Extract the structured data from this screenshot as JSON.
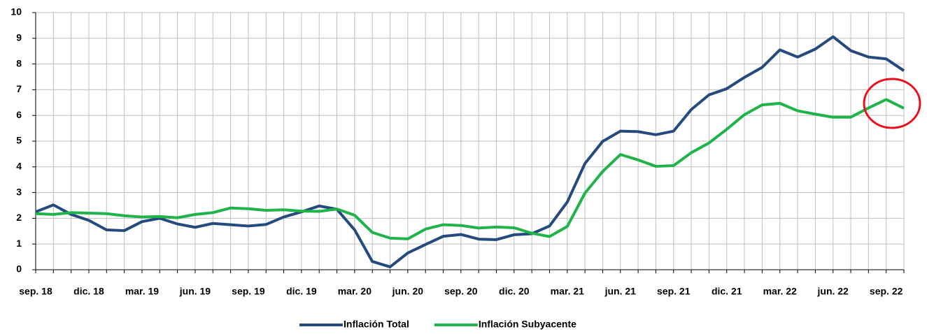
{
  "chart_data": {
    "type": "line",
    "categories": [
      "sep. 18",
      null,
      null,
      "dic. 18",
      null,
      null,
      "mar. 19",
      null,
      null,
      "jun. 19",
      null,
      null,
      "sep. 19",
      null,
      null,
      "dic. 19",
      null,
      null,
      "mar. 20",
      null,
      null,
      "jun. 20",
      null,
      null,
      "sep. 20",
      null,
      null,
      "dic. 20",
      null,
      null,
      "mar. 21",
      null,
      null,
      "jun. 21",
      null,
      null,
      "sep. 21",
      null,
      null,
      "dic. 21",
      null,
      null,
      "mar. 22",
      null,
      null,
      "jun. 22",
      null,
      null,
      "sep. 22",
      null
    ],
    "series": [
      {
        "name": "Inflación Total",
        "color": "#254b7e",
        "values": [
          2.25,
          2.52,
          2.15,
          1.92,
          1.55,
          1.52,
          1.87,
          2.0,
          1.78,
          1.65,
          1.8,
          1.75,
          1.7,
          1.76,
          2.05,
          2.25,
          2.48,
          2.35,
          1.55,
          0.32,
          0.11,
          0.65,
          0.98,
          1.3,
          1.37,
          1.19,
          1.17,
          1.36,
          1.4,
          1.7,
          2.63,
          4.13,
          4.99,
          5.39,
          5.37,
          5.25,
          5.39,
          6.23,
          6.8,
          7.04,
          7.48,
          7.87,
          8.55,
          8.27,
          8.58,
          9.06,
          8.52,
          8.27,
          8.2,
          7.74
        ]
      },
      {
        "name": "Inflación Subyacente",
        "color": "#1fb34a",
        "values": [
          2.18,
          2.15,
          2.22,
          2.2,
          2.18,
          2.1,
          2.05,
          2.07,
          2.02,
          2.15,
          2.22,
          2.4,
          2.37,
          2.31,
          2.33,
          2.28,
          2.27,
          2.36,
          2.12,
          1.45,
          1.23,
          1.2,
          1.58,
          1.75,
          1.72,
          1.62,
          1.66,
          1.63,
          1.42,
          1.29,
          1.68,
          2.98,
          3.82,
          4.48,
          4.27,
          4.02,
          4.05,
          4.55,
          4.93,
          5.46,
          6.03,
          6.41,
          6.47,
          6.18,
          6.05,
          5.93,
          5.93,
          6.29,
          6.62,
          6.28
        ]
      }
    ],
    "ylim": [
      0,
      10
    ],
    "yticks": [
      0,
      1,
      2,
      3,
      4,
      5,
      6,
      7,
      8,
      9,
      10
    ],
    "grid": true,
    "legend": "bottom"
  }
}
